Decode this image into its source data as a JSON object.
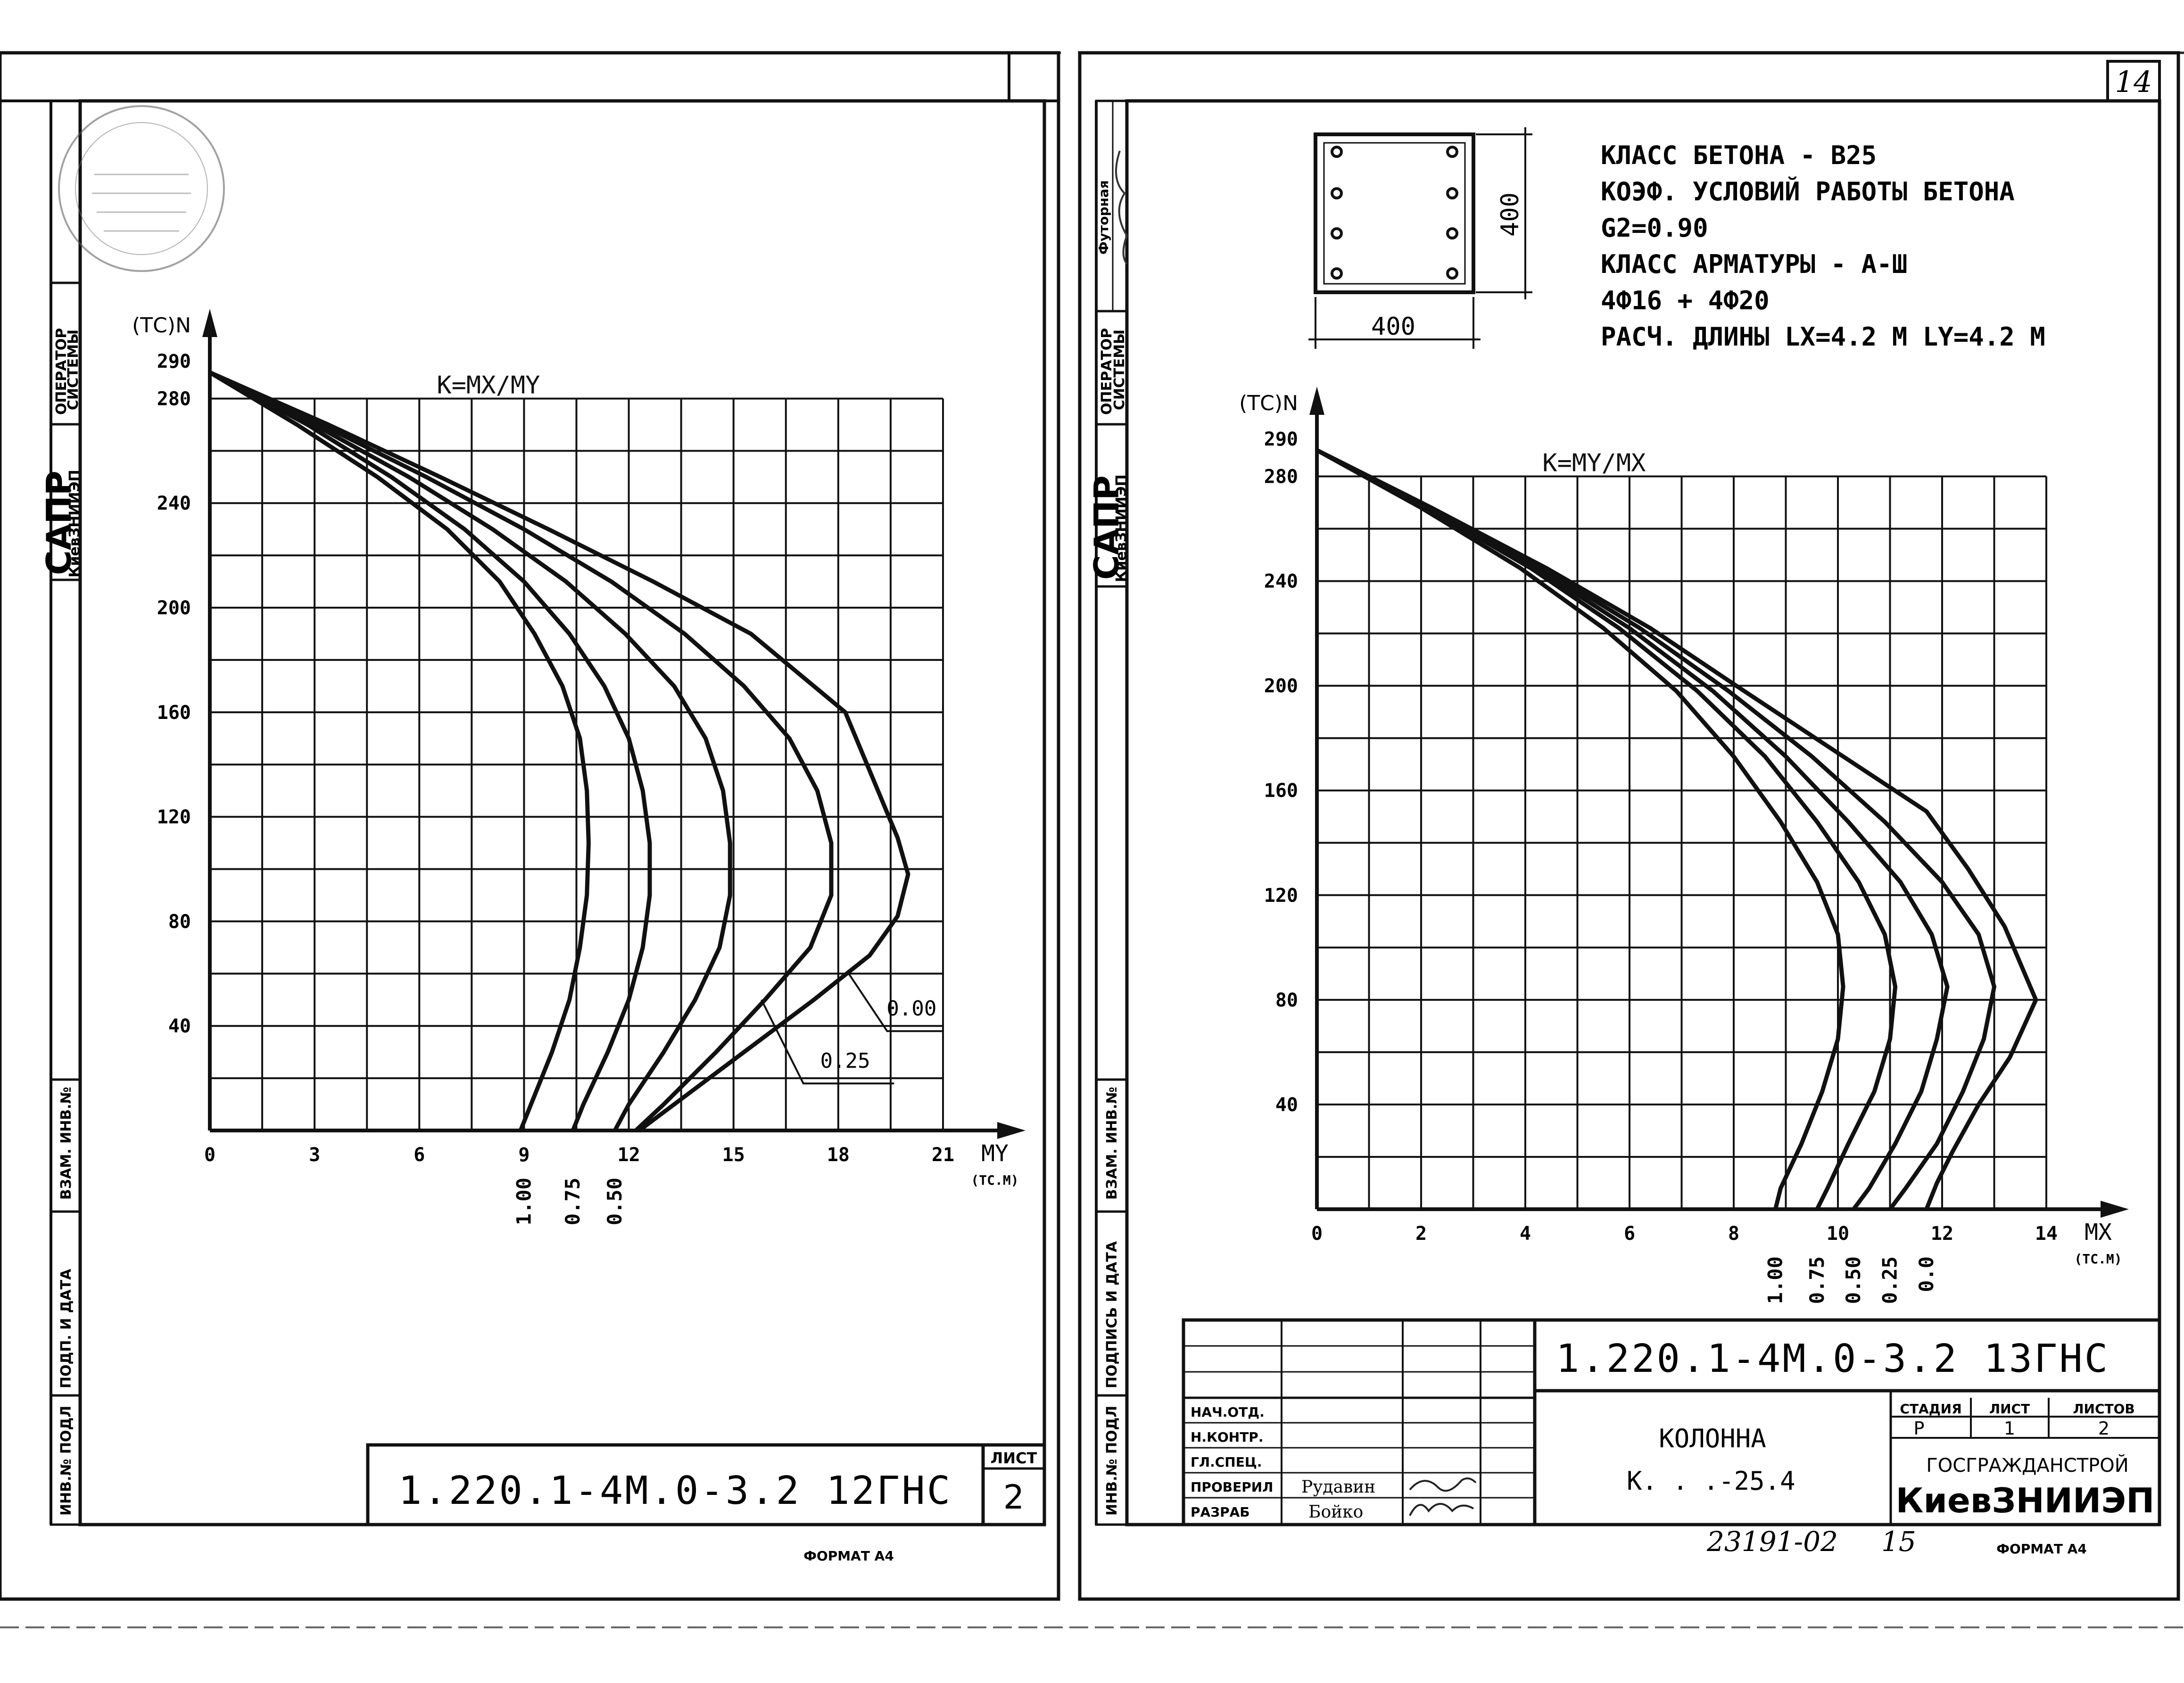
{
  "left_sheet": {
    "side_stamp": {
      "sapr": "САПР",
      "org": "КиевЗНИИЭП",
      "operator_line1": "ОПЕРАТОР",
      "operator_line2": "СИСТЕМЫ"
    },
    "side_fields": [
      "ВЗАМ. ИНВ.№",
      "ПОДП. И ДАТА",
      "ИНВ.№ ПОДЛ"
    ],
    "designation": "1.220.1-4М.0-3.2 12ГНС",
    "sheet_label": "ЛИСТ",
    "sheet_number": "2",
    "format_label": "ФОРМАТ А4"
  },
  "right_sheet": {
    "page_number": "14",
    "side_stamp": {
      "futor_label": "Футорная",
      "sapr": "САПР",
      "org": "КиевЗНИИЭП",
      "operator_line1": "ОПЕРАТОР",
      "operator_line2": "СИСТЕМЫ"
    },
    "side_fields": [
      "ВЗАМ. ИНВ.№",
      "ПОДПИСЬ И ДАТА",
      "ИНВ.№ ПОДЛ"
    ],
    "section": {
      "width_label": "400",
      "height_label": "400"
    },
    "notes": [
      "КЛАСС БЕТОНА - В25",
      "КОЭФ. УСЛОВИЙ РАБОТЫ БЕТОНА",
      "G2=0.90",
      "КЛАСС АРМАТУРЫ - А-Ш",
      "4Ф16 + 4Ф20",
      "РАСЧ. ДЛИНЫ  LX=4.2 М  LY=4.2 М"
    ],
    "title_block": {
      "designation": "1.220.1-4М.0-3.2 13ГНС",
      "roles": [
        "НАЧ.ОТД.",
        "Н.КОНТР.",
        "ГЛ.СПЕЦ.",
        "ПРОВЕРИЛ",
        "РАЗРАБ"
      ],
      "names": [
        "",
        "",
        "",
        "Рудавин",
        "Бойко"
      ],
      "name_title": "КОЛОННА",
      "name_code": "К. . .-25.4",
      "stage_header": "СТАДИЯ",
      "sheet_header": "ЛИСТ",
      "sheets_header": "ЛИСТОВ",
      "stage": "Р",
      "sheet": "1",
      "sheets": "2",
      "org_top": "ГОСГРАЖДАНСТРОЙ",
      "org_bottom": "КиевЗНИИЭП"
    },
    "archive_number": "23191-02",
    "archive_sheet": "15",
    "format_label": "ФОРМАТ А4"
  },
  "chart_data": [
    {
      "type": "line",
      "title": "K=MX/MY",
      "xlabel": "MY",
      "xunit": "(ТС.М)",
      "ylabel": "N",
      "yunit": "(ТС)",
      "xlim": [
        0,
        21
      ],
      "ylim": [
        0,
        290
      ],
      "xticks": [
        0,
        3,
        6,
        9,
        12,
        15,
        18,
        21
      ],
      "xtick_labels": [
        "0",
        "3",
        "6",
        "9",
        "12",
        "15",
        "18",
        "21"
      ],
      "yticks": [
        40,
        80,
        120,
        160,
        200,
        240,
        280,
        290
      ],
      "ytick_labels": [
        "40",
        "80",
        "120",
        "160",
        "200",
        "240",
        "280",
        "290"
      ],
      "grid": true,
      "series": [
        {
          "name": "1.00",
          "points": [
            [
              0,
              290
            ],
            [
              2.5,
              270
            ],
            [
              4.8,
              250
            ],
            [
              6.8,
              230
            ],
            [
              8.3,
              210
            ],
            [
              9.3,
              190
            ],
            [
              10.1,
              170
            ],
            [
              10.6,
              150
            ],
            [
              10.8,
              130
            ],
            [
              10.85,
              110
            ],
            [
              10.8,
              90
            ],
            [
              10.6,
              70
            ],
            [
              10.3,
              50
            ],
            [
              9.8,
              30
            ],
            [
              9.2,
              10
            ],
            [
              8.9,
              0
            ]
          ]
        },
        {
          "name": "0.75",
          "points": [
            [
              0,
              290
            ],
            [
              2.8,
              270
            ],
            [
              5.2,
              250
            ],
            [
              7.3,
              230
            ],
            [
              9.0,
              210
            ],
            [
              10.3,
              190
            ],
            [
              11.3,
              170
            ],
            [
              12.0,
              150
            ],
            [
              12.4,
              130
            ],
            [
              12.6,
              110
            ],
            [
              12.6,
              90
            ],
            [
              12.4,
              70
            ],
            [
              12.0,
              50
            ],
            [
              11.4,
              30
            ],
            [
              10.7,
              10
            ],
            [
              10.4,
              0
            ]
          ]
        },
        {
          "name": "0.50",
          "points": [
            [
              0,
              290
            ],
            [
              3.0,
              270
            ],
            [
              5.7,
              250
            ],
            [
              8.1,
              230
            ],
            [
              10.2,
              210
            ],
            [
              11.9,
              190
            ],
            [
              13.3,
              170
            ],
            [
              14.2,
              150
            ],
            [
              14.7,
              130
            ],
            [
              14.9,
              110
            ],
            [
              14.9,
              90
            ],
            [
              14.6,
              70
            ],
            [
              13.9,
              50
            ],
            [
              13.0,
              30
            ],
            [
              12.0,
              10
            ],
            [
              11.6,
              0
            ]
          ]
        },
        {
          "name": "0.25",
          "points": [
            [
              0,
              290
            ],
            [
              3.2,
              270
            ],
            [
              6.2,
              250
            ],
            [
              9.0,
              230
            ],
            [
              11.5,
              210
            ],
            [
              13.6,
              190
            ],
            [
              15.3,
              170
            ],
            [
              16.6,
              150
            ],
            [
              17.4,
              130
            ],
            [
              17.8,
              110
            ],
            [
              17.8,
              90
            ],
            [
              17.2,
              70
            ],
            [
              15.9,
              50
            ],
            [
              14.5,
              30
            ],
            [
              13.0,
              10
            ],
            [
              12.2,
              0
            ]
          ]
        },
        {
          "name": "0.00",
          "points": [
            [
              0,
              290
            ],
            [
              3.4,
              270
            ],
            [
              6.6,
              250
            ],
            [
              9.7,
              230
            ],
            [
              12.7,
              210
            ],
            [
              15.5,
              190
            ],
            [
              18.2,
              160
            ],
            [
              19.7,
              112
            ],
            [
              20.0,
              98
            ],
            [
              19.7,
              82
            ],
            [
              18.9,
              67
            ],
            [
              17.3,
              50
            ],
            [
              15.5,
              32
            ],
            [
              13.8,
              15
            ],
            [
              12.3,
              0
            ]
          ]
        }
      ]
    },
    {
      "type": "line",
      "title": "K=MY/MX",
      "xlabel": "MX",
      "xunit": "(ТС.М)",
      "ylabel": "N",
      "yunit": "(ТС)",
      "xlim": [
        0,
        14
      ],
      "ylim": [
        0,
        290
      ],
      "xticks": [
        0,
        2,
        4,
        6,
        8,
        10,
        12,
        14
      ],
      "xtick_labels": [
        "0",
        "2",
        "4",
        "6",
        "8",
        "10",
        "12",
        "14"
      ],
      "yticks": [
        40,
        80,
        120,
        160,
        200,
        240,
        280,
        290
      ],
      "ytick_labels": [
        "40",
        "80",
        "120",
        "160",
        "200",
        "240",
        "280",
        "290"
      ],
      "grid": true,
      "series": [
        {
          "name": "1.00",
          "points": [
            [
              0,
              290
            ],
            [
              2.0,
              268
            ],
            [
              3.9,
              245
            ],
            [
              5.5,
              222
            ],
            [
              6.9,
              198
            ],
            [
              8.0,
              173
            ],
            [
              8.9,
              148
            ],
            [
              9.6,
              125
            ],
            [
              10.0,
              105
            ],
            [
              10.1,
              85
            ],
            [
              10.0,
              65
            ],
            [
              9.7,
              45
            ],
            [
              9.3,
              25
            ],
            [
              8.9,
              8
            ],
            [
              8.8,
              0
            ]
          ]
        },
        {
          "name": "0.75",
          "points": [
            [
              0,
              290
            ],
            [
              2.1,
              268
            ],
            [
              4.1,
              245
            ],
            [
              5.8,
              222
            ],
            [
              7.3,
              198
            ],
            [
              8.6,
              173
            ],
            [
              9.6,
              148
            ],
            [
              10.4,
              125
            ],
            [
              10.9,
              105
            ],
            [
              11.1,
              85
            ],
            [
              11.0,
              65
            ],
            [
              10.7,
              45
            ],
            [
              10.2,
              25
            ],
            [
              9.8,
              8
            ],
            [
              9.6,
              0
            ]
          ]
        },
        {
          "name": "0.50",
          "points": [
            [
              0,
              290
            ],
            [
              2.1,
              268
            ],
            [
              4.2,
              245
            ],
            [
              6.0,
              222
            ],
            [
              7.6,
              198
            ],
            [
              9.0,
              173
            ],
            [
              10.2,
              148
            ],
            [
              11.2,
              125
            ],
            [
              11.8,
              105
            ],
            [
              12.1,
              85
            ],
            [
              11.9,
              65
            ],
            [
              11.6,
              45
            ],
            [
              11.1,
              25
            ],
            [
              10.6,
              8
            ],
            [
              10.3,
              0
            ]
          ]
        },
        {
          "name": "0.25",
          "points": [
            [
              0,
              290
            ],
            [
              2.2,
              268
            ],
            [
              4.3,
              245
            ],
            [
              6.2,
              222
            ],
            [
              7.9,
              198
            ],
            [
              9.5,
              173
            ],
            [
              10.9,
              148
            ],
            [
              12.0,
              125
            ],
            [
              12.7,
              105
            ],
            [
              13.0,
              85
            ],
            [
              12.8,
              65
            ],
            [
              12.4,
              45
            ],
            [
              11.9,
              25
            ],
            [
              11.3,
              8
            ],
            [
              11.0,
              0
            ]
          ]
        },
        {
          "name": "0.0",
          "points": [
            [
              0,
              290
            ],
            [
              2.2,
              268
            ],
            [
              4.4,
              245
            ],
            [
              6.4,
              222
            ],
            [
              8.2,
              198
            ],
            [
              10.1,
              173
            ],
            [
              11.7,
              152
            ],
            [
              12.5,
              130
            ],
            [
              13.2,
              108
            ],
            [
              13.8,
              80
            ],
            [
              13.3,
              58
            ],
            [
              12.7,
              40
            ],
            [
              12.2,
              22
            ],
            [
              11.9,
              10
            ],
            [
              11.7,
              0
            ]
          ]
        }
      ]
    }
  ]
}
